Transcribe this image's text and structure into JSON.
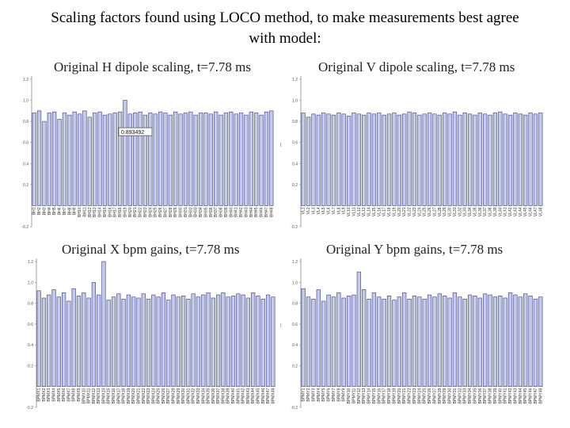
{
  "slide": {
    "title_line1": "Scaling factors found using LOCO method, to make measurements best agree",
    "title_line2": "with model:"
  },
  "colors": {
    "bar_fill": "#c6cbea",
    "bar_stroke": "#4a4f8a",
    "axis": "#888888",
    "gap_mark": "#6a6f9a"
  },
  "chart_data": [
    {
      "type": "bar",
      "title": "Original H dipole scaling, t=7.78 ms",
      "ylim": [
        -0.2,
        1.2
      ],
      "yticks": [
        "-0.2",
        "0.2",
        "0.4",
        "0.6",
        "0.8",
        "1.0",
        "1.2"
      ],
      "categories": [
        "BH1",
        "BH2",
        "BH3",
        "BH4",
        "BH5",
        "BH6",
        "BH7",
        "BH8",
        "BH9",
        "BH10",
        "BH11",
        "BH12",
        "BH13",
        "BH14",
        "BH15",
        "BH16",
        "BH17",
        "BH18",
        "BH19",
        "BH20",
        "BH21",
        "BH22",
        "BH23",
        "BH24",
        "BH25",
        "BH26",
        "BH27",
        "BH28",
        "BH29",
        "BH30",
        "BH31",
        "BH32",
        "BH33",
        "BH34",
        "BH35",
        "BH36",
        "BH37",
        "BH38",
        "BH39",
        "BH40",
        "BH41",
        "BH42",
        "BH43",
        "BH44",
        "BH45",
        "BH46",
        "BH47",
        "BH48"
      ],
      "values": [
        0.88,
        0.9,
        0.8,
        0.88,
        0.89,
        0.82,
        0.88,
        0.86,
        0.89,
        0.87,
        0.9,
        0.84,
        0.88,
        0.89,
        0.86,
        0.87,
        0.88,
        0.89,
        1.0,
        0.87,
        0.88,
        0.89,
        0.86,
        0.88,
        0.87,
        0.89,
        0.88,
        0.86,
        0.89,
        0.87,
        0.88,
        0.89,
        0.86,
        0.88,
        0.88,
        0.87,
        0.89,
        0.86,
        0.88,
        0.89,
        0.87,
        0.88,
        0.86,
        0.89,
        0.88,
        0.86,
        0.89,
        0.9
      ],
      "tooltip": "0.893492",
      "grid": false,
      "legend": "none"
    },
    {
      "type": "bar",
      "title": "Original V dipole scaling, t=7.78 ms",
      "ylim": [
        -0.2,
        1.2
      ],
      "yticks": [
        "-0.2",
        "0.2",
        "0.4",
        "0.6",
        "0.8",
        "1.0",
        "1.2"
      ],
      "categories": [
        "VL1",
        "VL2",
        "VL3",
        "VL4",
        "VL5",
        "VL6",
        "VL7",
        "VL8",
        "VL9",
        "VL10",
        "VL11",
        "VL12",
        "VL13",
        "VL14",
        "VL15",
        "VL16",
        "VL17",
        "VL18",
        "VL19",
        "VL20",
        "VL21",
        "VL22",
        "VL23",
        "VL24",
        "VL25",
        "VL26",
        "VL27",
        "VL28",
        "VL29",
        "VL30",
        "VL31",
        "VL32",
        "VL33",
        "VL34",
        "VL35",
        "VL36",
        "VL37",
        "VL38",
        "VL39",
        "VL40",
        "VL41",
        "VL42",
        "VL43",
        "VL44",
        "VL45",
        "VL46",
        "VL47",
        "VL48"
      ],
      "values": [
        0.88,
        0.84,
        0.87,
        0.86,
        0.88,
        0.87,
        0.86,
        0.88,
        0.87,
        0.85,
        0.88,
        0.87,
        0.86,
        0.88,
        0.87,
        0.88,
        0.86,
        0.87,
        0.88,
        0.86,
        0.87,
        0.89,
        0.88,
        0.86,
        0.87,
        0.88,
        0.87,
        0.86,
        0.88,
        0.87,
        0.89,
        0.86,
        0.88,
        0.87,
        0.86,
        0.88,
        0.87,
        0.86,
        0.88,
        0.89,
        0.87,
        0.86,
        0.88,
        0.87,
        0.86,
        0.88,
        0.87,
        0.88
      ],
      "grid": false,
      "legend": "none"
    },
    {
      "type": "bar",
      "title": "Original X bpm gains, t=7.78 ms",
      "ylim": [
        -0.2,
        1.2
      ],
      "yticks": [
        "-0.2",
        "0.2",
        "0.4",
        "0.6",
        "0.8",
        "1.0",
        "1.2"
      ],
      "categories": [
        "BPMX1",
        "BPMX2",
        "BPMX3",
        "BPMX4",
        "BPMX5",
        "BPMX6",
        "BPMX7",
        "BPMX8",
        "BPMX9",
        "BPMX10",
        "BPMX11",
        "BPMX12",
        "BPMX13",
        "BPMX14",
        "BPMX15",
        "BPMX16",
        "BPMX17",
        "BPMX18",
        "BPMX19",
        "BPMX20",
        "BPMX21",
        "BPMX22",
        "BPMX23",
        "BPMX24",
        "BPMX25",
        "BPMX26",
        "BPMX27",
        "BPMX28",
        "BPMX29",
        "BPMX30",
        "BPMX31",
        "BPMX32",
        "BPMX33",
        "BPMX34",
        "BPMX35",
        "BPMX36",
        "BPMX37",
        "BPMX38",
        "BPMX39",
        "BPMX40",
        "BPMX41",
        "BPMX42",
        "BPMX43",
        "BPMX44",
        "BPMX45",
        "BPMX46",
        "BPMX47",
        "BPMX48"
      ],
      "values": [
        0.92,
        0.85,
        0.88,
        0.93,
        0.86,
        0.9,
        0.82,
        0.94,
        0.87,
        0.9,
        0.85,
        1.0,
        0.88,
        1.2,
        0.83,
        0.86,
        0.89,
        0.84,
        0.88,
        0.86,
        0.85,
        0.89,
        0.84,
        0.88,
        0.86,
        0.9,
        0.83,
        0.88,
        0.86,
        0.87,
        0.84,
        0.89,
        0.86,
        0.88,
        0.9,
        0.85,
        0.88,
        0.9,
        0.86,
        0.87,
        0.89,
        0.88,
        0.85,
        0.9,
        0.87,
        0.84,
        0.88,
        0.86
      ],
      "grid": false,
      "legend": "none"
    },
    {
      "type": "bar",
      "title": "Original Y bpm gains, t=7.78 ms",
      "ylim": [
        -0.2,
        1.2
      ],
      "yticks": [
        "-0.2",
        "0.2",
        "0.4",
        "0.6",
        "0.8",
        "1.0",
        "1.2"
      ],
      "categories": [
        "BPMY1",
        "BPMY2",
        "BPMY3",
        "BPMY4",
        "BPMY5",
        "BPMY6",
        "BPMY7",
        "BPMY8",
        "BPMY9",
        "BPMY10",
        "BPMY11",
        "BPMY12",
        "BPMY13",
        "BPMY14",
        "BPMY15",
        "BPMY16",
        "BPMY17",
        "BPMY18",
        "BPMY19",
        "BPMY20",
        "BPMY21",
        "BPMY22",
        "BPMY23",
        "BPMY24",
        "BPMY25",
        "BPMY26",
        "BPMY27",
        "BPMY28",
        "BPMY29",
        "BPMY30",
        "BPMY31",
        "BPMY32",
        "BPMY33",
        "BPMY34",
        "BPMY35",
        "BPMY36",
        "BPMY37",
        "BPMY38",
        "BPMY39",
        "BPMY40",
        "BPMY41",
        "BPMY42",
        "BPMY43",
        "BPMY44",
        "BPMY45",
        "BPMY46",
        "BPMY47",
        "BPMY48"
      ],
      "values": [
        0.94,
        0.86,
        0.84,
        0.93,
        0.82,
        0.88,
        0.86,
        0.9,
        0.85,
        0.87,
        0.88,
        1.1,
        0.93,
        0.84,
        0.9,
        0.86,
        0.84,
        0.87,
        0.83,
        0.86,
        0.9,
        0.84,
        0.87,
        0.86,
        0.84,
        0.88,
        0.86,
        0.89,
        0.87,
        0.85,
        0.9,
        0.86,
        0.84,
        0.88,
        0.87,
        0.85,
        0.89,
        0.88,
        0.86,
        0.87,
        0.85,
        0.9,
        0.88,
        0.86,
        0.89,
        0.87,
        0.84,
        0.86
      ],
      "grid": false,
      "legend": "none"
    }
  ]
}
